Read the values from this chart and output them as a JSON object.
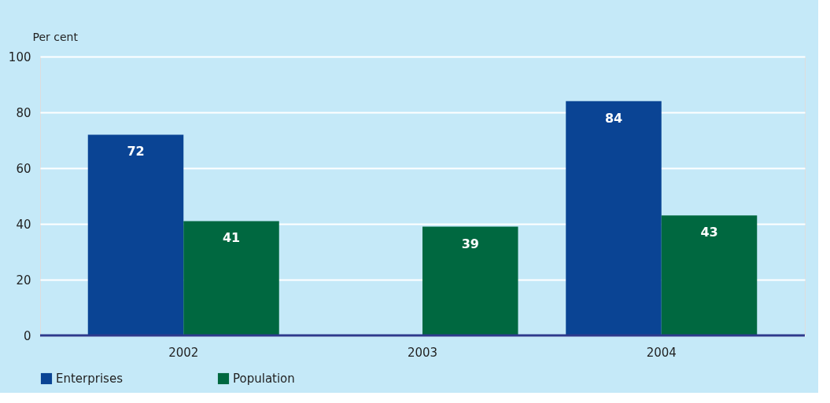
{
  "chart_data": {
    "type": "bar",
    "ylabel": "Per cent",
    "categories": [
      "2002",
      "2003",
      "2004"
    ],
    "series": [
      {
        "name": "Enterprises",
        "color": "#0a4494",
        "values": [
          72,
          null,
          84
        ]
      },
      {
        "name": "Population",
        "color": "#006840",
        "values": [
          41,
          39,
          43
        ]
      }
    ],
    "ylim": [
      0,
      100
    ],
    "yticks": [
      0,
      20,
      40,
      60,
      80,
      100
    ],
    "grid": "y",
    "legend": "bottom",
    "data_labels": true
  }
}
